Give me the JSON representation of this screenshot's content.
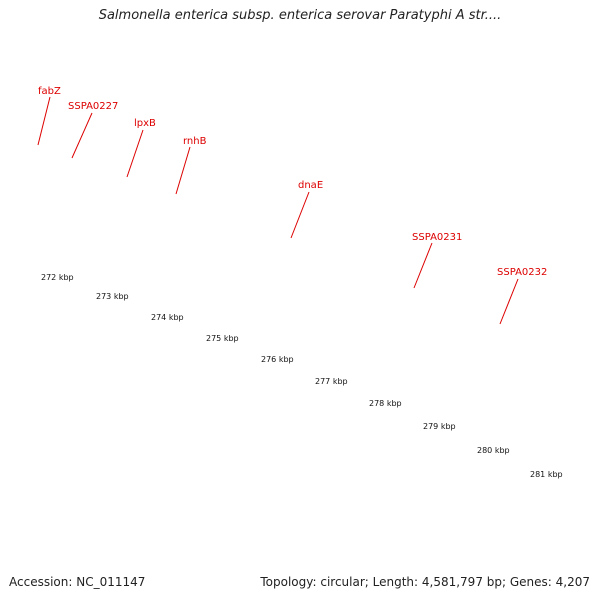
{
  "title": "Salmonella enterica subsp. enterica serovar Paratyphi A str....",
  "footer": {
    "accession": "Accession: NC_011147",
    "topology": "Topology: circular; Length: 4,581,797 bp; Genes: 4,207"
  },
  "colors": {
    "green": "#6b8e23",
    "purple": "#6a5acd",
    "magenta": "#ff1493",
    "gray": "#c8c8c8",
    "steelblue": "#4682b4",
    "cds_red": "#ff0000",
    "label_red": "#dd0000",
    "tick_green": "#008000",
    "backbone_gray": "#808080"
  },
  "genes": [
    {
      "name": "fabZ",
      "color": "green"
    },
    {
      "name": "SSPA0227",
      "color": "purple"
    },
    {
      "name": "lpxB",
      "color": "green"
    },
    {
      "name": "rnhB",
      "color": "magenta"
    },
    {
      "name": "dnaE",
      "color": "magenta"
    },
    {
      "name": "SSPA0231",
      "color": "purple"
    },
    {
      "name": "SSPA0232",
      "color": "gray"
    }
  ],
  "scale": {
    "labels": [
      "272 kbp",
      "273 kbp",
      "274 kbp",
      "275 kbp",
      "276 kbp",
      "277 kbp",
      "278 kbp",
      "279 kbp",
      "280 kbp",
      "281 kbp"
    ]
  }
}
